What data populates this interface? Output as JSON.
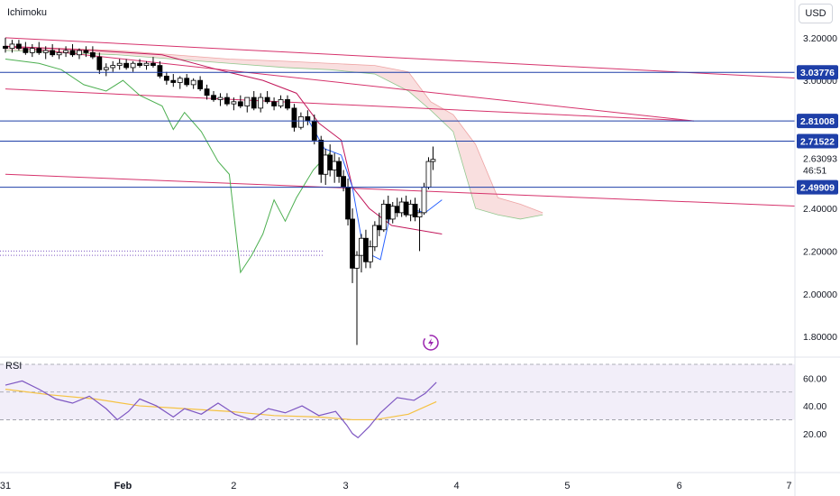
{
  "header": {
    "indicator_label": "Ichimoku",
    "currency_label": "USD"
  },
  "rsi_panel": {
    "label": "RSI",
    "ticks": [
      "60.00",
      "40.00",
      "20.00"
    ]
  },
  "price_axis": {
    "ticks": [
      "3.20000",
      "3.00000",
      "2.40000",
      "2.20000",
      "2.00000",
      "1.80000"
    ]
  },
  "time_axis": {
    "labels": [
      "31",
      "Feb",
      "2",
      "3",
      "4",
      "5",
      "6",
      "7"
    ]
  },
  "markers": {
    "last_price": "2.63093",
    "countdown": "46:51"
  },
  "horizontal_levels": [
    {
      "value": 3.03776,
      "label": "3.03776"
    },
    {
      "value": 2.81008,
      "label": "2.81008"
    },
    {
      "value": 2.71522,
      "label": "2.71522"
    },
    {
      "value": 2.49909,
      "label": "2.49909"
    }
  ],
  "colors": {
    "level_line": "#1e3fa8",
    "trend_line": "#d6336c",
    "green": "#4caf50",
    "up_candle": "#ffffff",
    "down_candle": "#000000",
    "rsi_line": "#7e57c2",
    "rsi_ma": "#f5c242",
    "rsi_band": "#ede7f6",
    "kijun": "#c2185b",
    "tenkan": "#2962ff",
    "cloud_red": "#f8d7d7",
    "cloud_green": "#d5ead5"
  },
  "chart_data": {
    "type": "candlestick",
    "ylim": [
      1.72,
      3.25
    ],
    "x_range": [
      0,
      7.1
    ],
    "candles": [
      [
        0.0,
        3.16,
        3.2,
        3.13,
        3.15
      ],
      [
        0.06,
        3.15,
        3.19,
        3.13,
        3.17
      ],
      [
        0.12,
        3.17,
        3.19,
        3.14,
        3.15
      ],
      [
        0.18,
        3.15,
        3.18,
        3.12,
        3.13
      ],
      [
        0.24,
        3.13,
        3.17,
        3.11,
        3.15
      ],
      [
        0.3,
        3.15,
        3.18,
        3.12,
        3.13
      ],
      [
        0.36,
        3.13,
        3.16,
        3.1,
        3.14
      ],
      [
        0.42,
        3.14,
        3.17,
        3.11,
        3.12
      ],
      [
        0.48,
        3.12,
        3.15,
        3.1,
        3.13
      ],
      [
        0.54,
        3.13,
        3.16,
        3.11,
        3.14
      ],
      [
        0.6,
        3.14,
        3.17,
        3.11,
        3.12
      ],
      [
        0.66,
        3.12,
        3.15,
        3.1,
        3.14
      ],
      [
        0.72,
        3.14,
        3.16,
        3.11,
        3.13
      ],
      [
        0.78,
        3.13,
        3.16,
        3.1,
        3.11
      ],
      [
        0.84,
        3.11,
        3.13,
        3.03,
        3.05
      ],
      [
        0.9,
        3.05,
        3.08,
        3.02,
        3.06
      ],
      [
        0.96,
        3.06,
        3.09,
        3.04,
        3.07
      ],
      [
        1.02,
        3.07,
        3.1,
        3.05,
        3.08
      ],
      [
        1.08,
        3.08,
        3.1,
        3.05,
        3.06
      ],
      [
        1.14,
        3.06,
        3.09,
        3.04,
        3.08
      ],
      [
        1.2,
        3.08,
        3.1,
        3.06,
        3.07
      ],
      [
        1.26,
        3.07,
        3.09,
        3.05,
        3.08
      ],
      [
        1.32,
        3.08,
        3.11,
        3.06,
        3.07
      ],
      [
        1.38,
        3.07,
        3.09,
        3.01,
        3.02
      ],
      [
        1.44,
        3.02,
        3.04,
        2.98,
        3.0
      ],
      [
        1.5,
        3.0,
        3.03,
        2.97,
        2.99
      ],
      [
        1.56,
        2.99,
        3.02,
        2.96,
        3.01
      ],
      [
        1.62,
        3.01,
        3.03,
        2.97,
        2.98
      ],
      [
        1.68,
        2.98,
        3.01,
        2.96,
        3.0
      ],
      [
        1.74,
        3.0,
        3.02,
        2.95,
        2.96
      ],
      [
        1.8,
        2.96,
        2.98,
        2.91,
        2.93
      ],
      [
        1.86,
        2.93,
        2.95,
        2.9,
        2.91
      ],
      [
        1.92,
        2.91,
        2.94,
        2.88,
        2.92
      ],
      [
        1.98,
        2.92,
        2.94,
        2.88,
        2.89
      ],
      [
        2.04,
        2.89,
        2.92,
        2.86,
        2.9
      ],
      [
        2.1,
        2.9,
        2.93,
        2.87,
        2.88
      ],
      [
        2.16,
        2.88,
        2.91,
        2.85,
        2.92
      ],
      [
        2.22,
        2.92,
        2.95,
        2.86,
        2.87
      ],
      [
        2.28,
        2.87,
        2.94,
        2.85,
        2.92
      ],
      [
        2.34,
        2.92,
        2.95,
        2.89,
        2.9
      ],
      [
        2.4,
        2.9,
        2.92,
        2.86,
        2.88
      ],
      [
        2.46,
        2.88,
        2.93,
        2.87,
        2.91
      ],
      [
        2.52,
        2.91,
        2.93,
        2.86,
        2.87
      ],
      [
        2.58,
        2.87,
        2.89,
        2.76,
        2.78
      ],
      [
        2.64,
        2.78,
        2.85,
        2.77,
        2.83
      ],
      [
        2.7,
        2.83,
        2.86,
        2.79,
        2.81
      ],
      [
        2.76,
        2.81,
        2.84,
        2.7,
        2.72
      ],
      [
        2.82,
        2.72,
        2.74,
        2.52,
        2.56
      ],
      [
        2.86,
        2.56,
        2.68,
        2.51,
        2.65
      ],
      [
        2.9,
        2.65,
        2.7,
        2.55,
        2.58
      ],
      [
        2.94,
        2.58,
        2.66,
        2.52,
        2.62
      ],
      [
        2.98,
        2.62,
        2.64,
        2.52,
        2.55
      ],
      [
        3.02,
        2.55,
        2.58,
        2.48,
        2.5
      ],
      [
        3.06,
        2.5,
        2.54,
        2.32,
        2.35
      ],
      [
        3.1,
        2.35,
        2.4,
        2.05,
        2.12
      ],
      [
        3.14,
        2.12,
        2.2,
        1.76,
        2.18
      ],
      [
        3.18,
        2.18,
        2.28,
        2.1,
        2.26
      ],
      [
        3.22,
        2.26,
        2.3,
        2.12,
        2.15
      ],
      [
        3.26,
        2.15,
        2.25,
        2.12,
        2.22
      ],
      [
        3.3,
        2.22,
        2.34,
        2.2,
        2.32
      ],
      [
        3.34,
        2.32,
        2.38,
        2.27,
        2.3
      ],
      [
        3.38,
        2.3,
        2.44,
        2.29,
        2.42
      ],
      [
        3.42,
        2.42,
        2.46,
        2.33,
        2.35
      ],
      [
        3.46,
        2.35,
        2.43,
        2.33,
        2.41
      ],
      [
        3.5,
        2.41,
        2.45,
        2.36,
        2.38
      ],
      [
        3.54,
        2.38,
        2.45,
        2.36,
        2.43
      ],
      [
        3.58,
        2.43,
        2.46,
        2.36,
        2.37
      ],
      [
        3.62,
        2.37,
        2.44,
        2.34,
        2.42
      ],
      [
        3.66,
        2.42,
        2.45,
        2.34,
        2.36
      ],
      [
        3.7,
        2.36,
        2.4,
        2.2,
        2.38
      ],
      [
        3.74,
        2.38,
        2.52,
        2.37,
        2.5
      ],
      [
        3.78,
        2.5,
        2.64,
        2.49,
        2.62
      ],
      [
        3.82,
        2.62,
        2.69,
        2.58,
        2.63
      ]
    ],
    "kijun": [
      [
        0.0,
        3.16
      ],
      [
        0.8,
        3.14
      ],
      [
        1.4,
        3.12
      ],
      [
        1.9,
        3.05
      ],
      [
        2.3,
        3.0
      ],
      [
        2.6,
        2.94
      ],
      [
        2.8,
        2.8
      ],
      [
        3.0,
        2.72
      ],
      [
        3.1,
        2.5
      ],
      [
        3.25,
        2.4
      ],
      [
        3.45,
        2.32
      ],
      [
        3.9,
        2.28
      ]
    ],
    "tenkan": [
      [
        2.7,
        2.82
      ],
      [
        2.85,
        2.68
      ],
      [
        3.0,
        2.65
      ],
      [
        3.1,
        2.5
      ],
      [
        3.2,
        2.2
      ],
      [
        3.35,
        2.16
      ],
      [
        3.45,
        2.4
      ],
      [
        3.6,
        2.4
      ],
      [
        3.75,
        2.38
      ],
      [
        3.9,
        2.44
      ]
    ],
    "chikou": [
      [
        0.0,
        3.1
      ],
      [
        0.3,
        3.08
      ],
      [
        0.5,
        3.05
      ],
      [
        0.7,
        2.98
      ],
      [
        0.9,
        2.95
      ],
      [
        1.05,
        3.0
      ],
      [
        1.2,
        2.93
      ],
      [
        1.4,
        2.88
      ],
      [
        1.5,
        2.77
      ],
      [
        1.6,
        2.85
      ],
      [
        1.75,
        2.76
      ],
      [
        1.9,
        2.62
      ],
      [
        2.0,
        2.56
      ],
      [
        2.1,
        2.1
      ],
      [
        2.2,
        2.18
      ],
      [
        2.3,
        2.28
      ],
      [
        2.4,
        2.44
      ],
      [
        2.5,
        2.34
      ],
      [
        2.6,
        2.45
      ],
      [
        2.75,
        2.58
      ],
      [
        2.82,
        2.62
      ],
      [
        2.9,
        2.66
      ]
    ],
    "cloud": {
      "x": [
        0.0,
        0.5,
        1.0,
        1.5,
        2.0,
        2.5,
        2.9,
        3.3,
        3.6,
        3.8,
        4.0,
        4.2,
        4.4,
        4.6,
        4.8
      ],
      "span_a": [
        3.14,
        3.13,
        3.12,
        3.1,
        3.08,
        3.06,
        3.05,
        3.03,
        2.95,
        2.86,
        2.76,
        2.4,
        2.37,
        2.35,
        2.37
      ],
      "span_b": [
        3.16,
        3.15,
        3.14,
        3.12,
        3.1,
        3.09,
        3.08,
        3.07,
        3.04,
        2.9,
        2.84,
        2.7,
        2.45,
        2.42,
        2.38
      ]
    },
    "trend_lines": [
      {
        "from": [
          0.0,
          3.2
        ],
        "to": [
          7.1,
          3.01
        ]
      },
      {
        "from": [
          0.0,
          3.16
        ],
        "to": [
          6.15,
          2.81
        ]
      },
      {
        "from": [
          0.0,
          2.96
        ],
        "to": [
          6.15,
          2.81
        ]
      },
      {
        "from": [
          0.0,
          2.56
        ],
        "to": [
          7.1,
          2.41
        ]
      }
    ],
    "dotted_level": [
      2.2,
      2.18
    ],
    "rsi": {
      "ylim": [
        14,
        70
      ],
      "band": [
        30,
        70
      ],
      "midline": 50,
      "values": [
        [
          0.0,
          55
        ],
        [
          0.15,
          58
        ],
        [
          0.3,
          52
        ],
        [
          0.45,
          45
        ],
        [
          0.6,
          42
        ],
        [
          0.75,
          47
        ],
        [
          0.9,
          38
        ],
        [
          1.0,
          30
        ],
        [
          1.1,
          36
        ],
        [
          1.2,
          45
        ],
        [
          1.35,
          40
        ],
        [
          1.5,
          32
        ],
        [
          1.6,
          38
        ],
        [
          1.75,
          34
        ],
        [
          1.9,
          42
        ],
        [
          2.05,
          34
        ],
        [
          2.2,
          30
        ],
        [
          2.35,
          38
        ],
        [
          2.5,
          35
        ],
        [
          2.65,
          40
        ],
        [
          2.8,
          33
        ],
        [
          2.95,
          36
        ],
        [
          3.05,
          26
        ],
        [
          3.1,
          20
        ],
        [
          3.15,
          17
        ],
        [
          3.25,
          25
        ],
        [
          3.35,
          35
        ],
        [
          3.5,
          46
        ],
        [
          3.65,
          44
        ],
        [
          3.75,
          49
        ],
        [
          3.85,
          57
        ]
      ],
      "ma": [
        [
          0.0,
          52
        ],
        [
          0.4,
          48
        ],
        [
          0.8,
          45
        ],
        [
          1.2,
          40
        ],
        [
          1.6,
          38
        ],
        [
          2.0,
          36
        ],
        [
          2.4,
          33
        ],
        [
          2.8,
          32
        ],
        [
          3.1,
          30
        ],
        [
          3.3,
          30
        ],
        [
          3.6,
          34
        ],
        [
          3.85,
          43
        ]
      ]
    }
  }
}
